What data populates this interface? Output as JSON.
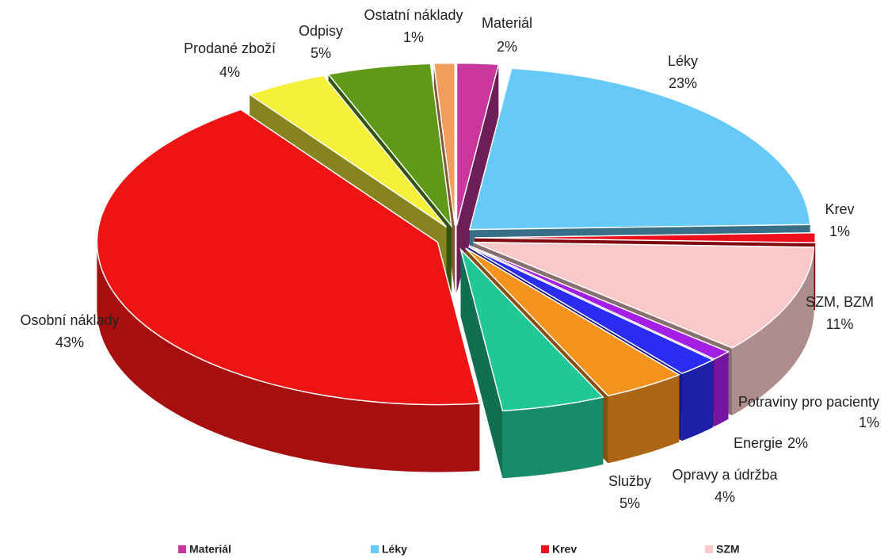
{
  "chart_data": {
    "type": "pie3d",
    "categories": [
      "Materiál",
      "Léky",
      "Krev",
      "SZM, BZM",
      "Potraviny pro pacienty",
      "Energie",
      "Opravy a údržba",
      "Služby",
      "Osobní náklady",
      "Prodané zboží",
      "Odpisy",
      "Ostatní náklady"
    ],
    "values": [
      2,
      23,
      1,
      11,
      1,
      2,
      4,
      5,
      43,
      4,
      5,
      1
    ],
    "value_labels": [
      "2%",
      "23%",
      "1%",
      "11%",
      "1%",
      "2%",
      "4%",
      "5%",
      "43%",
      "4%",
      "5%",
      "1%"
    ],
    "colors": [
      "#c8369e",
      "#66c9f7",
      "#ea0f1a",
      "#f9c9c9",
      "#a41ee6",
      "#2a2cf2",
      "#f6921e",
      "#1fc894",
      "#ee1414",
      "#f5f03a",
      "#5e9a17",
      "#f29d5c"
    ],
    "legend_labels": [
      "Materiál",
      "Léky",
      "Krev",
      "SZM"
    ]
  }
}
